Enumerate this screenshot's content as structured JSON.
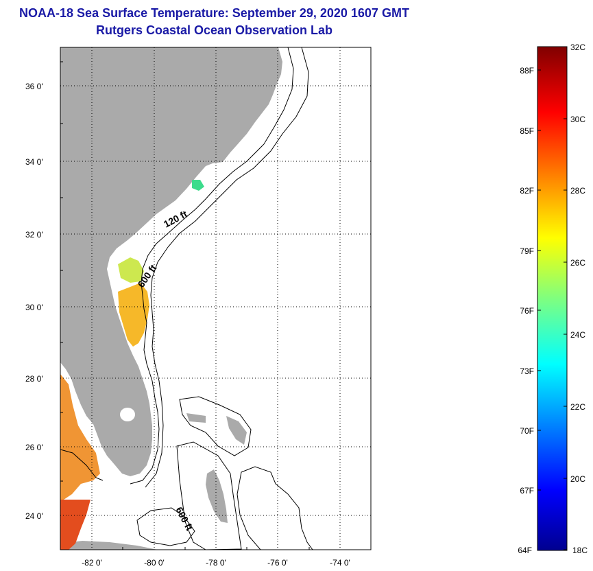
{
  "header": {
    "title": "NOAA-18 Sea Surface Temperature:  September 29, 2020 1607 GMT",
    "subtitle": "Rutgers Coastal Ocean Observation Lab"
  },
  "map": {
    "lat_labels": [
      "36 0'",
      "34 0'",
      "32 0'",
      "30 0'",
      "28 0'",
      "26 0'",
      "24 0'"
    ],
    "lon_labels": [
      "-82 0'",
      "-80 0'",
      "-78 0'",
      "-76 0'",
      "-74 0'"
    ],
    "contour_labels": [
      "120 ft",
      "600 ft",
      "600 ft"
    ],
    "colors": {
      "land": "#aaaaaa",
      "ocean": "#ffffff",
      "contour": "#000000"
    }
  },
  "colorbar": {
    "fahrenheit_labels": [
      "88F",
      "85F",
      "82F",
      "79F",
      "76F",
      "73F",
      "70F",
      "67F",
      "64F"
    ],
    "celsius_labels": [
      "32C",
      "30C",
      "28C",
      "26C",
      "24C",
      "22C",
      "20C",
      "18C"
    ]
  }
}
